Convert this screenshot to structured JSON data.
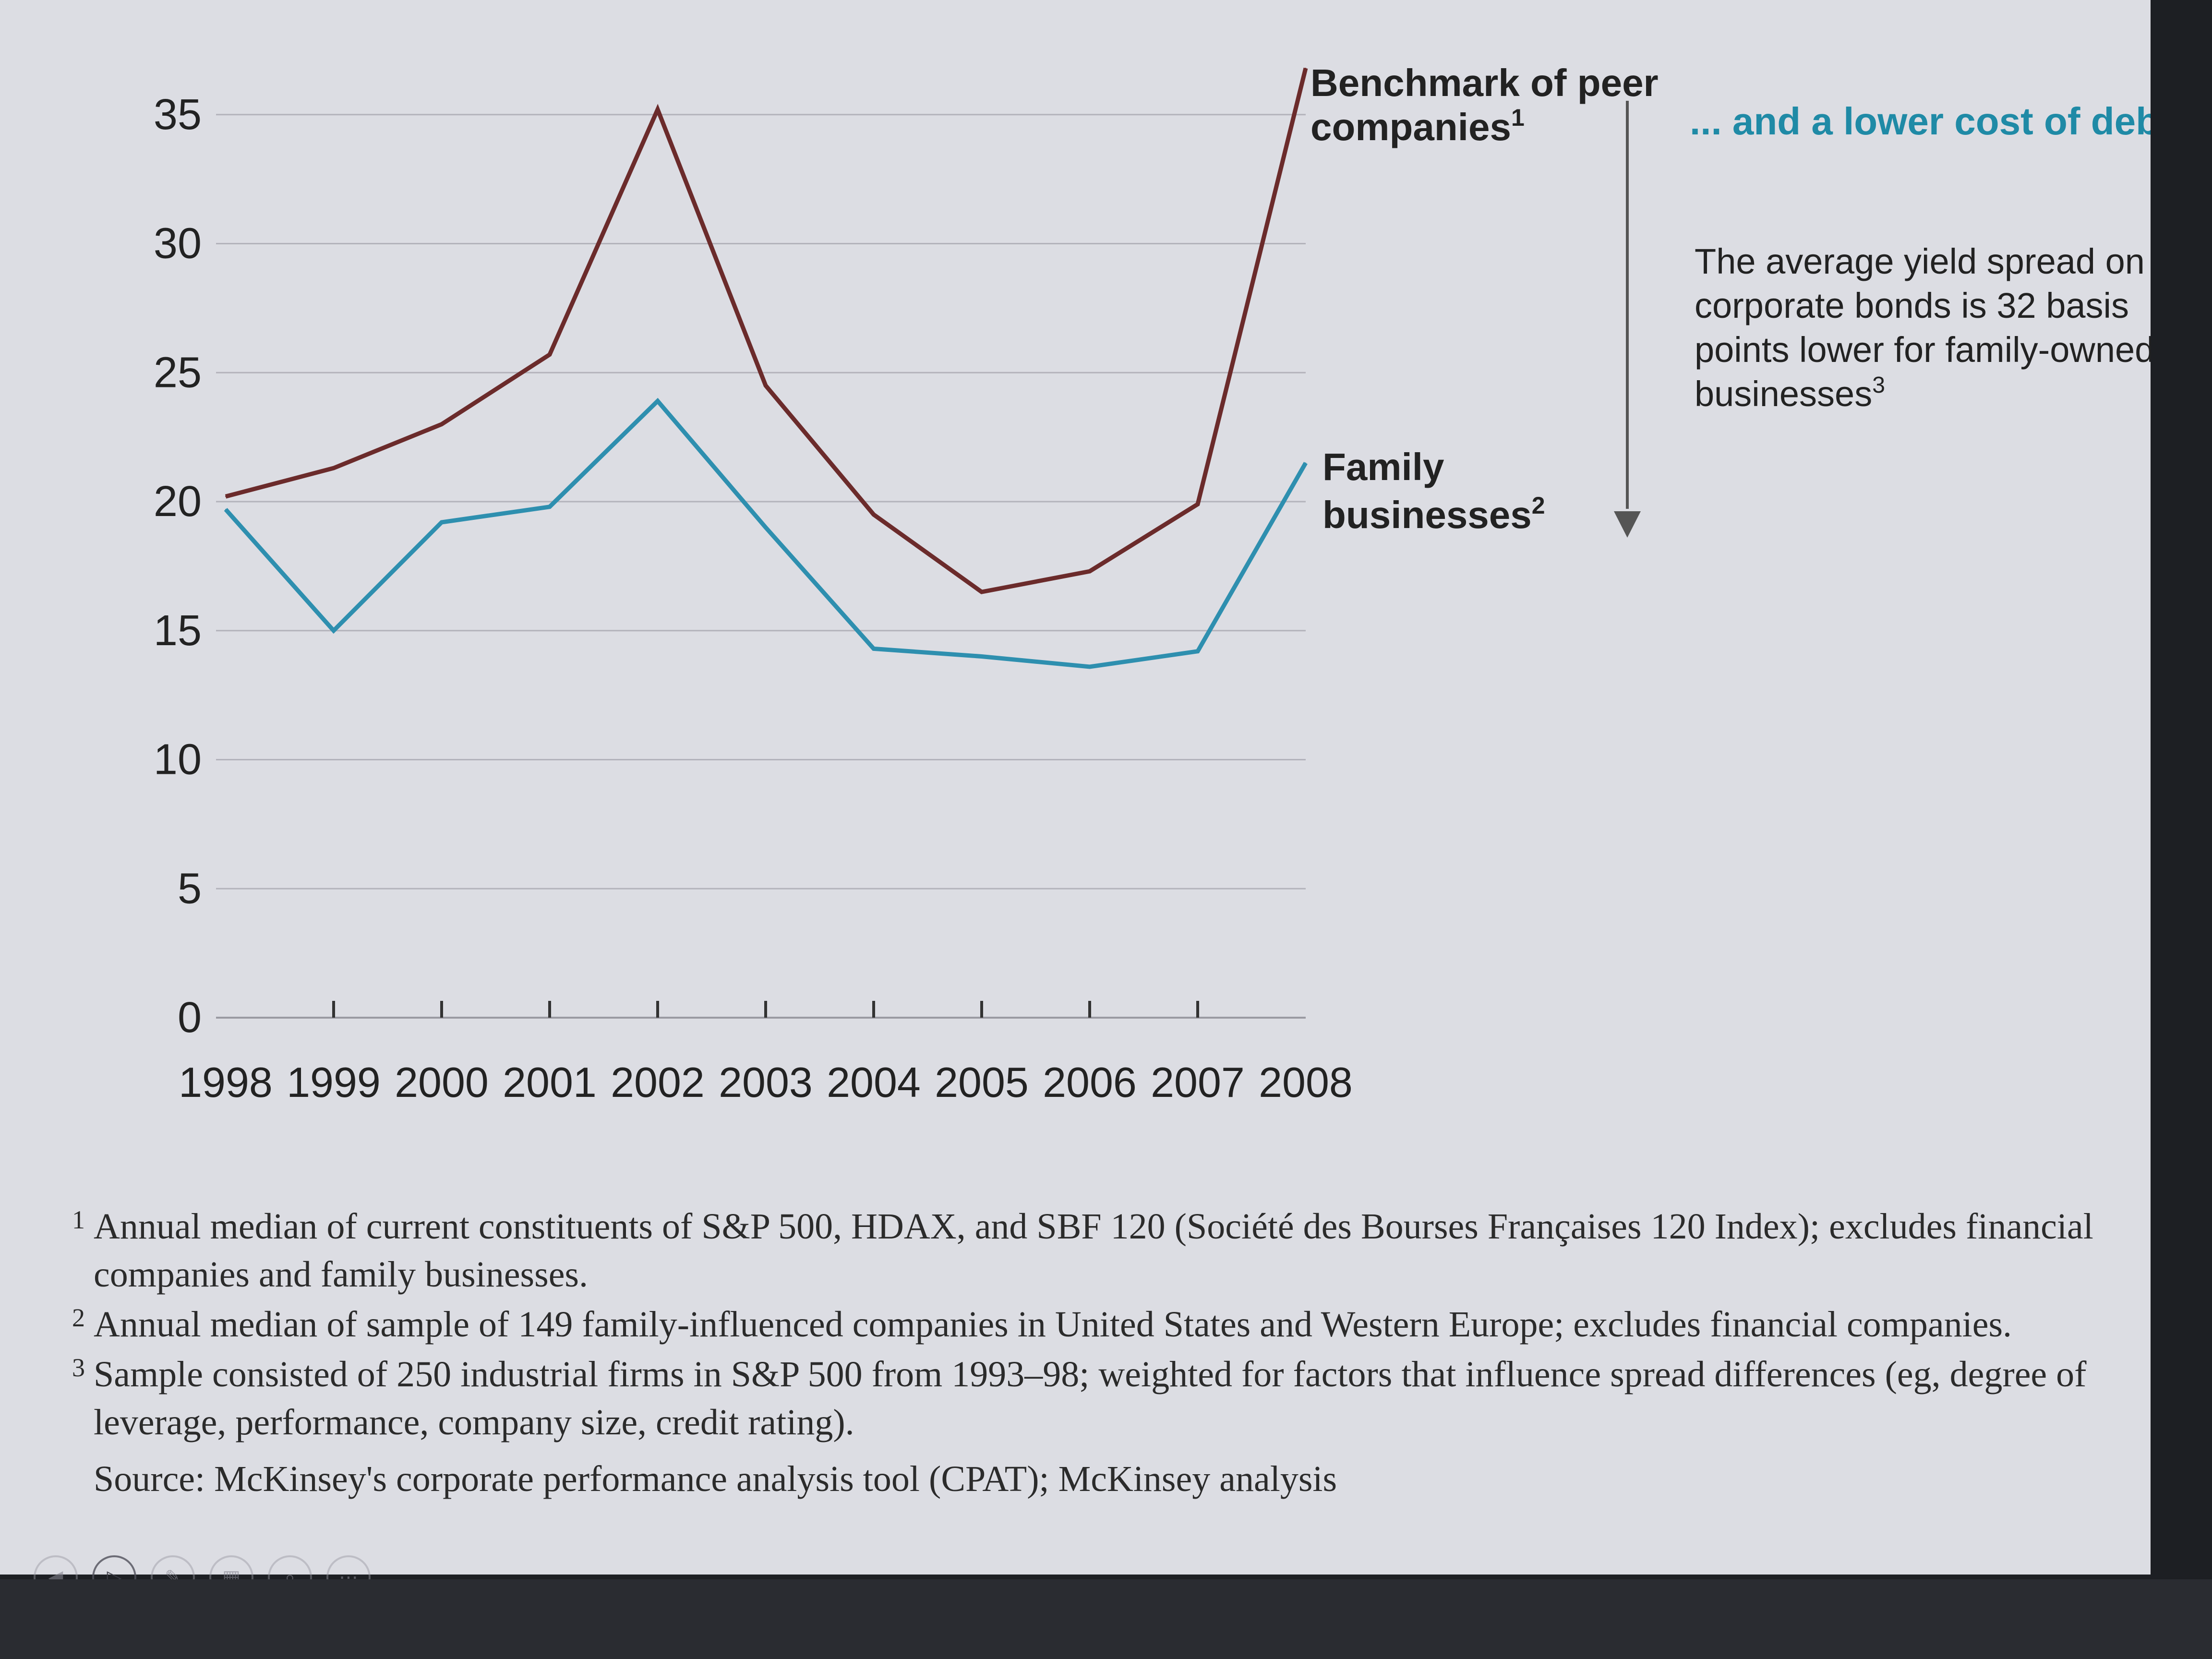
{
  "chart_data": {
    "type": "line",
    "x": [
      "1998",
      "1999",
      "2000",
      "2001",
      "2002",
      "2003",
      "2004",
      "2005",
      "2006",
      "2007",
      "2008"
    ],
    "ylim": [
      0,
      40
    ],
    "yticks": [
      0,
      5,
      10,
      15,
      20,
      25,
      30,
      35
    ],
    "grid": true,
    "series": [
      {
        "name": "Benchmark of peer companies",
        "footnote_mark": "1",
        "color": "#6b2b2b",
        "values": [
          20.2,
          21.3,
          23.0,
          25.7,
          35.2,
          24.5,
          19.5,
          16.5,
          17.3,
          19.9,
          36.8
        ]
      },
      {
        "name": "Family businesses",
        "footnote_mark": "2",
        "color": "#2e8faf",
        "values": [
          19.7,
          15.0,
          19.2,
          19.8,
          23.9,
          19.0,
          14.3,
          14.0,
          13.6,
          14.2,
          21.5
        ]
      }
    ],
    "annotation": {
      "heading": "... and a lower cost of debt",
      "heading_color": "#1f8aa6",
      "body_lines": [
        "The average yield spread on",
        "corporate bonds is 32 basis",
        "points lower for family-owned",
        "businesses"
      ],
      "footnote_mark": "3"
    }
  },
  "footnotes": [
    {
      "mark": "1",
      "text": "Annual median of current constituents of S&P 500, HDAX, and SBF 120 (Société des Bourses Françaises 120 Index); excludes financial companies and family businesses."
    },
    {
      "mark": "2",
      "text": "Annual median of sample of 149 family-influenced companies in United States and Western Europe; excludes financial companies."
    },
    {
      "mark": "3",
      "text": "Sample consisted of 250 industrial firms in S&P 500 from 1993–98; weighted for factors that influence spread differences (eg, degree of leverage, performance, company size, credit rating)."
    }
  ],
  "source": "Source: McKinsey's corporate performance analysis tool (CPAT); McKinsey analysis",
  "nav": {
    "icons": [
      "prev-icon",
      "play-icon",
      "pen-icon",
      "slides-icon",
      "zoom-icon",
      "more-icon"
    ],
    "glyphs": [
      "◀",
      "▷",
      "✎",
      "▦",
      "⌕",
      "⋯"
    ]
  }
}
